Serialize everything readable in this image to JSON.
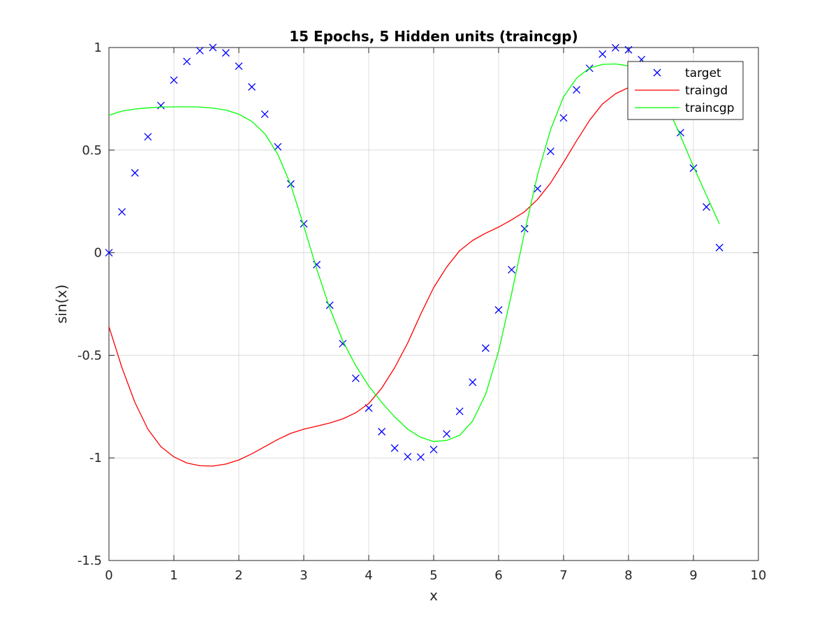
{
  "chart_data": {
    "type": "line",
    "title": "15 Epochs, 5 Hidden units (traincgp)",
    "xlabel": "x",
    "ylabel": "sin(x)",
    "xlim": [
      0,
      10
    ],
    "ylim": [
      -1.5,
      1
    ],
    "xticks": [
      0,
      1,
      2,
      3,
      4,
      5,
      6,
      7,
      8,
      9,
      10
    ],
    "xtick_labels": [
      "0",
      "1",
      "2",
      "3",
      "4",
      "5",
      "6",
      "7",
      "8",
      "9",
      "10"
    ],
    "yticks": [
      -1.5,
      -1,
      -0.5,
      0,
      0.5,
      1
    ],
    "ytick_labels": [
      "-1.5",
      "-1",
      "-0.5",
      "0",
      "0.5",
      "1"
    ],
    "grid": true,
    "legend_position": "top-right",
    "series": [
      {
        "name": "target",
        "style": "markers",
        "marker": "x",
        "color": "#0000ff",
        "x": [
          0,
          0.2,
          0.4,
          0.6,
          0.8,
          1.0,
          1.2,
          1.4,
          1.6,
          1.8,
          2.0,
          2.2,
          2.4,
          2.6,
          2.8,
          3.0,
          3.2,
          3.4,
          3.6,
          3.8,
          4.0,
          4.2,
          4.4,
          4.6,
          4.8,
          5.0,
          5.2,
          5.4,
          5.6,
          5.8,
          6.0,
          6.2,
          6.4,
          6.6,
          6.8,
          7.0,
          7.2,
          7.4,
          7.6,
          7.8,
          8.0,
          8.2,
          8.4,
          8.6,
          8.8,
          9.0,
          9.2,
          9.4
        ],
        "y": [
          0,
          0.199,
          0.389,
          0.565,
          0.717,
          0.841,
          0.932,
          0.985,
          1.0,
          0.974,
          0.909,
          0.808,
          0.675,
          0.516,
          0.335,
          0.141,
          -0.058,
          -0.256,
          -0.443,
          -0.612,
          -0.757,
          -0.872,
          -0.952,
          -0.994,
          -0.996,
          -0.959,
          -0.883,
          -0.773,
          -0.631,
          -0.465,
          -0.279,
          -0.083,
          0.117,
          0.312,
          0.494,
          0.657,
          0.794,
          0.899,
          0.968,
          0.999,
          0.989,
          0.941,
          0.855,
          0.734,
          0.585,
          0.412,
          0.223,
          0.025
        ]
      },
      {
        "name": "traingd",
        "style": "line",
        "color": "#ff0000",
        "x": [
          0,
          0.2,
          0.4,
          0.6,
          0.8,
          1.0,
          1.2,
          1.4,
          1.6,
          1.8,
          2.0,
          2.2,
          2.4,
          2.6,
          2.8,
          3.0,
          3.2,
          3.4,
          3.6,
          3.8,
          4.0,
          4.2,
          4.4,
          4.6,
          4.8,
          5.0,
          5.2,
          5.4,
          5.6,
          5.8,
          6.0,
          6.2,
          6.4,
          6.6,
          6.8,
          7.0,
          7.2,
          7.4,
          7.6,
          7.8,
          8.0,
          8.2,
          8.4,
          8.6,
          8.8,
          9.0,
          9.2,
          9.4
        ],
        "y": [
          -0.36,
          -0.56,
          -0.73,
          -0.86,
          -0.945,
          -0.995,
          -1.025,
          -1.038,
          -1.04,
          -1.03,
          -1.01,
          -0.98,
          -0.945,
          -0.91,
          -0.88,
          -0.86,
          -0.845,
          -0.83,
          -0.81,
          -0.78,
          -0.735,
          -0.66,
          -0.56,
          -0.44,
          -0.3,
          -0.17,
          -0.07,
          0.01,
          0.06,
          0.095,
          0.125,
          0.16,
          0.2,
          0.26,
          0.34,
          0.44,
          0.545,
          0.645,
          0.725,
          0.775,
          0.805,
          0.82,
          0.82,
          0.81,
          0.79,
          0.77,
          0.745,
          0.72
        ]
      },
      {
        "name": "traincgp",
        "style": "line",
        "color": "#00ff00",
        "x": [
          0,
          0.2,
          0.4,
          0.6,
          0.8,
          1.0,
          1.2,
          1.4,
          1.6,
          1.8,
          2.0,
          2.2,
          2.4,
          2.6,
          2.8,
          3.0,
          3.2,
          3.4,
          3.6,
          3.8,
          4.0,
          4.2,
          4.4,
          4.6,
          4.8,
          5.0,
          5.2,
          5.4,
          5.6,
          5.8,
          6.0,
          6.2,
          6.4,
          6.6,
          6.8,
          7.0,
          7.2,
          7.4,
          7.6,
          7.8,
          8.0,
          8.2,
          8.4,
          8.6,
          8.8,
          9.0,
          9.2,
          9.4
        ],
        "y": [
          0.67,
          0.69,
          0.7,
          0.706,
          0.71,
          0.711,
          0.711,
          0.71,
          0.705,
          0.695,
          0.675,
          0.64,
          0.58,
          0.48,
          0.33,
          0.13,
          -0.08,
          -0.27,
          -0.43,
          -0.55,
          -0.65,
          -0.73,
          -0.8,
          -0.86,
          -0.9,
          -0.92,
          -0.915,
          -0.89,
          -0.82,
          -0.69,
          -0.48,
          -0.2,
          0.1,
          0.38,
          0.6,
          0.76,
          0.85,
          0.9,
          0.918,
          0.92,
          0.91,
          0.87,
          0.81,
          0.71,
          0.57,
          0.42,
          0.28,
          0.14
        ]
      }
    ]
  }
}
